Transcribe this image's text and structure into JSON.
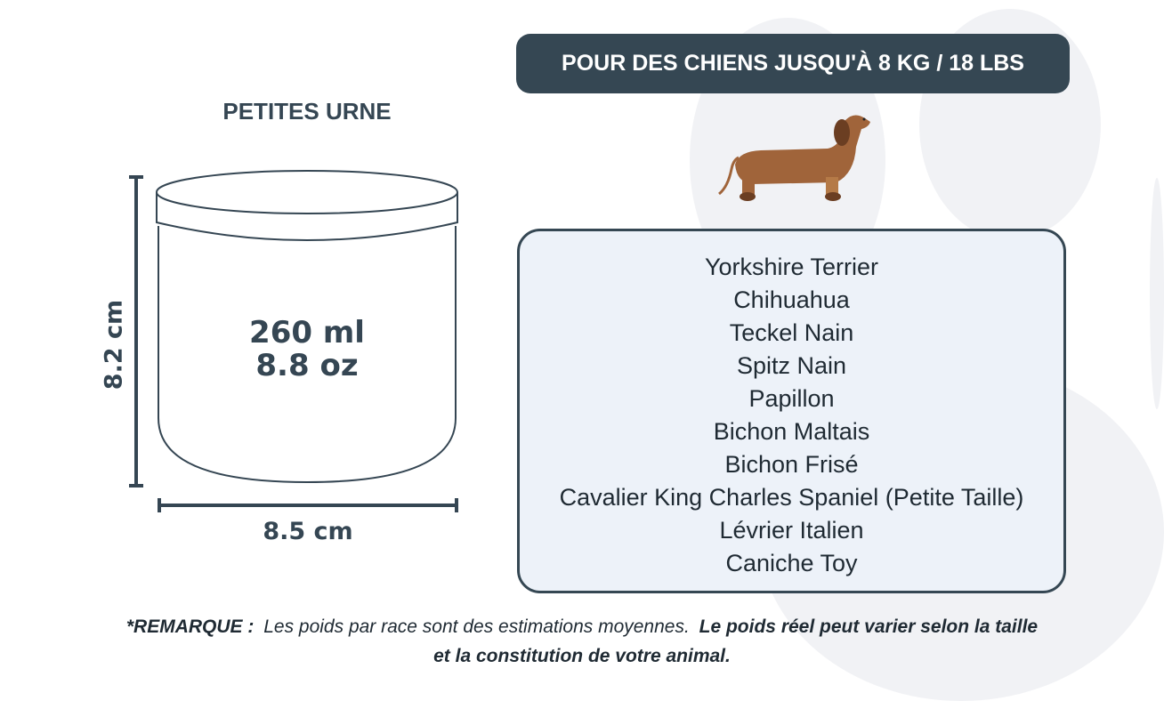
{
  "header": {
    "badge": "POUR DES CHIENS JUSQU'À 8 KG / 18 LBS"
  },
  "urn": {
    "title": "PETITES URNE",
    "volume_ml": "260 ml",
    "volume_oz": "8.8 oz",
    "height": "8.2 cm",
    "width": "8.5 cm"
  },
  "dog_icon": "dachshund-icon",
  "breeds": [
    "Yorkshire Terrier",
    "Chihuahua",
    "Teckel Nain",
    "Spitz Nain",
    "Papillon",
    "Bichon Maltais",
    "Bichon Frisé",
    "Cavalier King Charles Spaniel (Petite Taille)",
    "Lévrier Italien",
    "Caniche Toy"
  ],
  "note": {
    "label": "*REMARQUE :",
    "text": " Les poids par race sont des estimations moyennes. ",
    "bold": "Le poids réel peut varier selon la taille et la constitution de votre animal."
  },
  "colors": {
    "dark": "#354753",
    "list_bg": "#edf2f9",
    "paw": "#f1f2f5",
    "dog": "#a0643a"
  }
}
